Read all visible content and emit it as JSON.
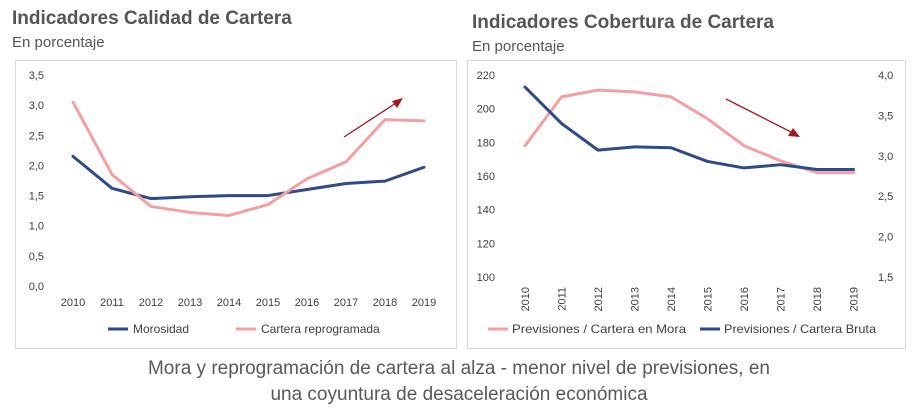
{
  "colors": {
    "navy": "#2e4a8a",
    "pink": "#f4a0a3",
    "arrow": "#a3191e",
    "border": "#d9d9d9"
  },
  "left_chart": {
    "title": "Indicadores Calidad de Cartera",
    "subtitle": "En porcentaje"
  },
  "right_chart": {
    "title": "Indicadores Cobertura de Cartera",
    "subtitle": "En porcentaje"
  },
  "caption": {
    "line1": "Mora y reprogramación de cartera al alza - menor nivel de previsiones, en",
    "line2": "una coyuntura de desaceleración económica"
  },
  "chart_data": [
    {
      "type": "line",
      "title": "Indicadores Calidad de Cartera",
      "subtitle": "En porcentaje",
      "categories": [
        "2010",
        "2011",
        "2012",
        "2013",
        "2014",
        "2015",
        "2016",
        "2017",
        "2018",
        "2019"
      ],
      "ylim": [
        0,
        3.5
      ],
      "yticks": [
        "0,0",
        "0,5",
        "1,0",
        "1,5",
        "2,0",
        "2,5",
        "3,0",
        "3,5"
      ],
      "grid": false,
      "legend": "bottom",
      "series": [
        {
          "name": "Morosidad",
          "color": "#2e4a8a",
          "values": [
            2.15,
            1.62,
            1.45,
            1.48,
            1.5,
            1.5,
            1.6,
            1.7,
            1.74,
            1.97
          ]
        },
        {
          "name": "Cartera reprogramada",
          "color": "#f4a0a3",
          "values": [
            3.05,
            1.85,
            1.32,
            1.22,
            1.17,
            1.35,
            1.78,
            2.06,
            2.76,
            2.74
          ]
        }
      ],
      "annotations": [
        {
          "type": "arrow",
          "direction": "up",
          "color": "#a3191e"
        }
      ]
    },
    {
      "type": "line",
      "title": "Indicadores Cobertura de Cartera",
      "subtitle": "En porcentaje",
      "categories": [
        "2010",
        "2011",
        "2012",
        "2013",
        "2014",
        "2015",
        "2016",
        "2017",
        "2018",
        "2019"
      ],
      "ylim": [
        100,
        220
      ],
      "yticks": [
        "100",
        "120",
        "140",
        "160",
        "180",
        "200",
        "220"
      ],
      "y2lim": [
        1.5,
        4.0
      ],
      "y2ticks": [
        "1,5",
        "2,0",
        "2,5",
        "3,0",
        "3,5",
        "4,0"
      ],
      "grid": false,
      "legend": "bottom",
      "series": [
        {
          "name": "Previsiones / Cartera en Mora",
          "color": "#f4a0a3",
          "axis": "left",
          "values": [
            178,
            207,
            211,
            210,
            207,
            194,
            178,
            169,
            162,
            162
          ]
        },
        {
          "name": "Previsiones / Cartera Bruta",
          "color": "#2e4a8a",
          "axis": "right",
          "values": [
            3.85,
            3.4,
            3.07,
            3.11,
            3.1,
            2.93,
            2.85,
            2.89,
            2.83,
            2.83
          ]
        }
      ],
      "annotations": [
        {
          "type": "arrow",
          "direction": "down",
          "color": "#a3191e"
        }
      ]
    }
  ]
}
